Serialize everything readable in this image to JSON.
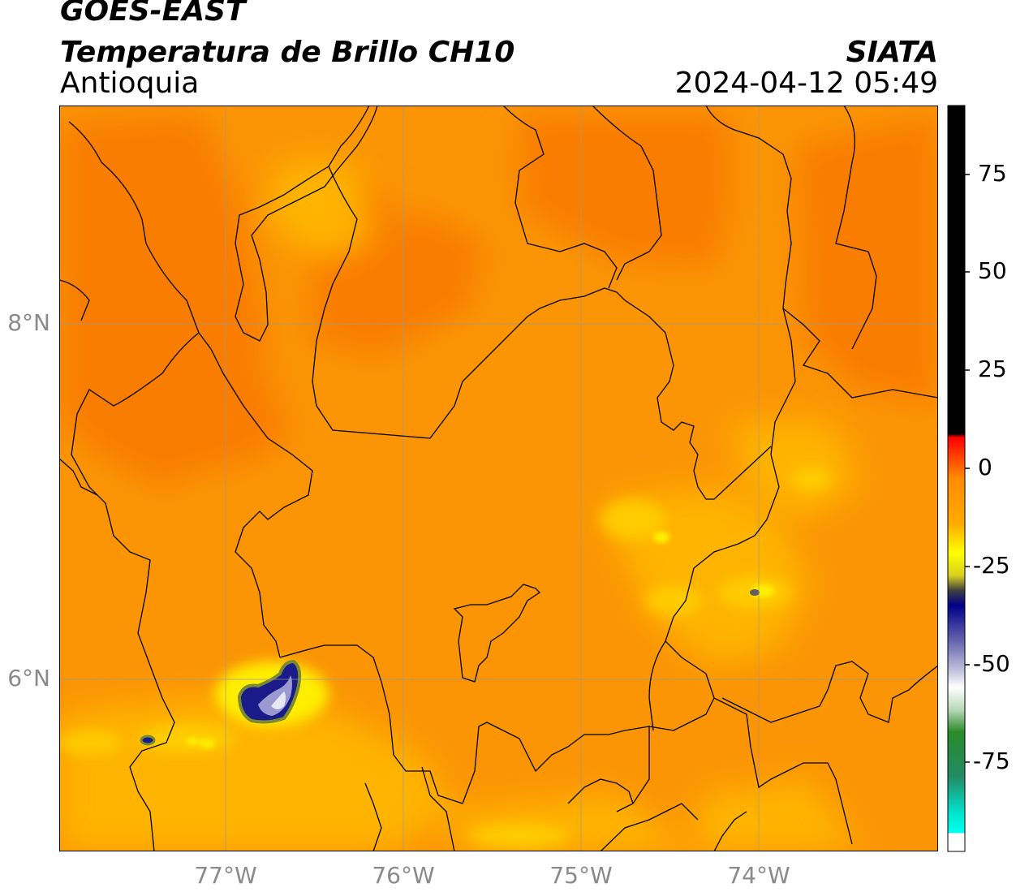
{
  "header": {
    "title": "GOES-EAST",
    "subtitle": "Temperatura de Brillo CH10",
    "region": "Antioquia",
    "organization": "SIATA",
    "datetime": "2024-04-12 05:49"
  },
  "map": {
    "lon_labels": [
      "77°W",
      "76°W",
      "75°W",
      "74°W"
    ],
    "lat_labels": [
      "8°N",
      "6°N"
    ],
    "background_color": "#fb9505",
    "warm_color": "#f97d06",
    "cold_cloud_colors": [
      "#ffee00",
      "#1a1a8a",
      "#e8e8f5"
    ]
  },
  "colorbar": {
    "ticks": [
      "75",
      "50",
      "25",
      "0",
      "-25",
      "-50",
      "-75"
    ],
    "colors": [
      "#000000",
      "#ff0000",
      "#ff9900",
      "#ffff00",
      "#000080",
      "#ffffff",
      "#228b22",
      "#00ffee"
    ]
  }
}
